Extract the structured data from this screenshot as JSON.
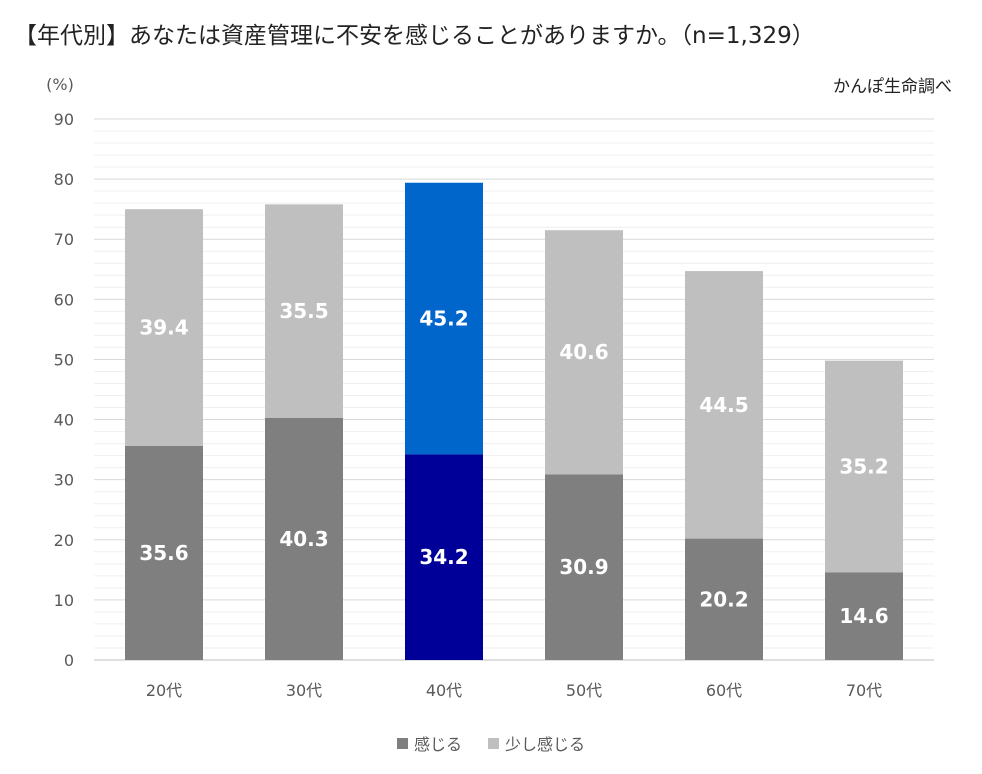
{
  "chart_data": {
    "type": "bar",
    "stacked": true,
    "title": "【年代別】あなたは資産管理に不安を感じることがありますか。（n=1,329）",
    "source": "かんぽ生命調べ",
    "ylabel": "(%)",
    "xlabel": "",
    "ylim": [
      0,
      90
    ],
    "yticks": [
      0,
      10,
      20,
      30,
      40,
      50,
      60,
      70,
      80,
      90
    ],
    "categories": [
      "20代",
      "30代",
      "40代",
      "50代",
      "60代",
      "70代"
    ],
    "series": [
      {
        "name": "感じる",
        "values": [
          35.6,
          40.3,
          34.2,
          30.9,
          20.2,
          14.6
        ],
        "color": "#7f7f7f"
      },
      {
        "name": "少し感じる",
        "values": [
          39.4,
          35.5,
          45.2,
          40.6,
          44.5,
          35.2
        ],
        "color": "#bfbfbf"
      }
    ],
    "highlight": {
      "category_index": 2,
      "colors": [
        "#000099",
        "#0066cc"
      ]
    },
    "grid": true,
    "legend_position": "bottom"
  }
}
